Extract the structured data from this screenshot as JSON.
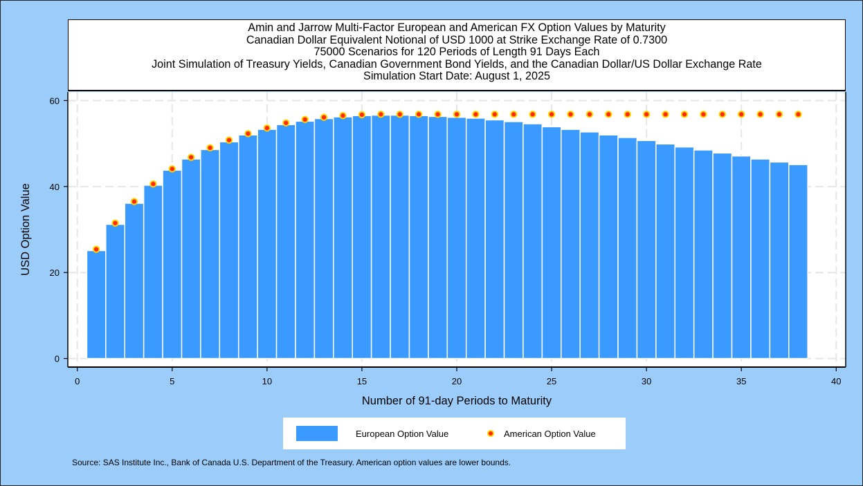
{
  "chart_data": {
    "type": "bar",
    "title_lines": [
      "Amin and Jarrow Multi-Factor European and American FX Option Values by Maturity",
      "Canadian Dollar Equivalent Notional of USD 1000 at Strike Exchange Rate of  0.7300",
      "75000 Scenarios for 120 Periods of Length 91 Days Each",
      "Joint Simulation of Treasury Yields, Canadian Government Bond Yields, and the Canadian Dollar/US Dollar Exchange Rate",
      "Simulation Start Date: August 1, 2025"
    ],
    "xlabel": "Number of 91-day Periods to Maturity",
    "ylabel": "USD Option Value",
    "xlim": [
      -0.5,
      40.5
    ],
    "ylim": [
      -2,
      62
    ],
    "x_ticks": [
      0,
      5,
      10,
      15,
      20,
      25,
      30,
      35,
      40
    ],
    "y_ticks": [
      0,
      20,
      40,
      60
    ],
    "grid": true,
    "legend_position": "bottom",
    "x": [
      1,
      2,
      3,
      4,
      5,
      6,
      7,
      8,
      9,
      10,
      11,
      12,
      13,
      14,
      15,
      16,
      17,
      18,
      19,
      20,
      21,
      22,
      23,
      24,
      25,
      26,
      27,
      28,
      29,
      30,
      31,
      32,
      33,
      34,
      35,
      36,
      37,
      38
    ],
    "series": [
      {
        "name": "European Option Value",
        "type": "bar",
        "color": "#3a9aff",
        "values": [
          25.1,
          31.2,
          36.1,
          40.3,
          43.8,
          46.4,
          48.6,
          50.4,
          52.0,
          53.3,
          54.4,
          55.2,
          55.8,
          56.2,
          56.5,
          56.6,
          56.6,
          56.5,
          56.3,
          56.1,
          55.9,
          55.5,
          55.1,
          54.6,
          53.9,
          53.3,
          52.7,
          52.0,
          51.4,
          50.7,
          49.9,
          49.2,
          48.5,
          47.8,
          47.1,
          46.4,
          45.7,
          45.1
        ]
      },
      {
        "name": "American Option Value",
        "type": "scatter",
        "color": "#ff2a00",
        "edge_color": "#ffd500",
        "values": [
          25.4,
          31.5,
          36.5,
          40.6,
          44.1,
          46.8,
          49.0,
          50.8,
          52.3,
          53.6,
          54.8,
          55.6,
          56.1,
          56.5,
          56.7,
          56.8,
          56.8,
          56.8,
          56.8,
          56.8,
          56.8,
          56.8,
          56.8,
          56.8,
          56.8,
          56.8,
          56.8,
          56.8,
          56.8,
          56.8,
          56.8,
          56.8,
          56.8,
          56.8,
          56.8,
          56.8,
          56.8,
          56.8
        ]
      }
    ]
  },
  "legend": {
    "european_label": "European Option Value",
    "american_label": "American Option Value"
  },
  "source_note": "Source: SAS Institute Inc., Bank of Canada U.S. Department of the Treasury. American option values are lower bounds.",
  "colors": {
    "background": "#9cccf9",
    "plot_background": "#ffffff",
    "bar": "#3a9aff",
    "marker_fill": "#ff2a00",
    "marker_edge": "#ffd500"
  }
}
